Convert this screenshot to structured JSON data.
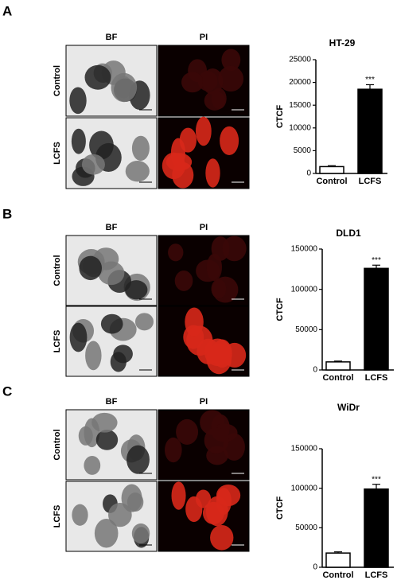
{
  "panels": [
    {
      "letter": "A",
      "columns": [
        "BF",
        "PI"
      ],
      "rows": [
        "Control",
        "LCFS"
      ]
    },
    {
      "letter": "B",
      "columns": [
        "BF",
        "PI"
      ],
      "rows": [
        "Control",
        "LCFS"
      ]
    },
    {
      "letter": "C",
      "columns": [
        "BF",
        "PI"
      ],
      "rows": [
        "Control",
        "LCFS"
      ]
    }
  ],
  "chart_data": [
    {
      "type": "bar",
      "title": "HT-29",
      "y_label": "CTCF",
      "categories": [
        "Control",
        "LCFS"
      ],
      "values": [
        1500,
        18500
      ],
      "errors": [
        200,
        1000
      ],
      "colors": [
        "#ffffff",
        "#000000"
      ],
      "annotation": "***",
      "ylim": [
        0,
        25000
      ],
      "yticks": [
        0,
        5000,
        10000,
        15000,
        20000,
        25000
      ]
    },
    {
      "type": "bar",
      "title": "DLD1",
      "y_label": "CTCF",
      "categories": [
        "Control",
        "LCFS"
      ],
      "values": [
        10000,
        126000
      ],
      "errors": [
        1000,
        4000
      ],
      "colors": [
        "#ffffff",
        "#000000"
      ],
      "annotation": "***",
      "ylim": [
        0,
        150000
      ],
      "yticks": [
        0,
        50000,
        100000,
        150000
      ]
    },
    {
      "type": "bar",
      "title": "WiDr",
      "y_label": "CTCF",
      "categories": [
        "Control",
        "LCFS"
      ],
      "values": [
        18000,
        99000
      ],
      "errors": [
        1500,
        6000
      ],
      "colors": [
        "#ffffff",
        "#000000"
      ],
      "annotation": "***",
      "ylim": [
        0,
        150000
      ],
      "yticks": [
        0,
        50000,
        100000,
        150000
      ]
    }
  ]
}
